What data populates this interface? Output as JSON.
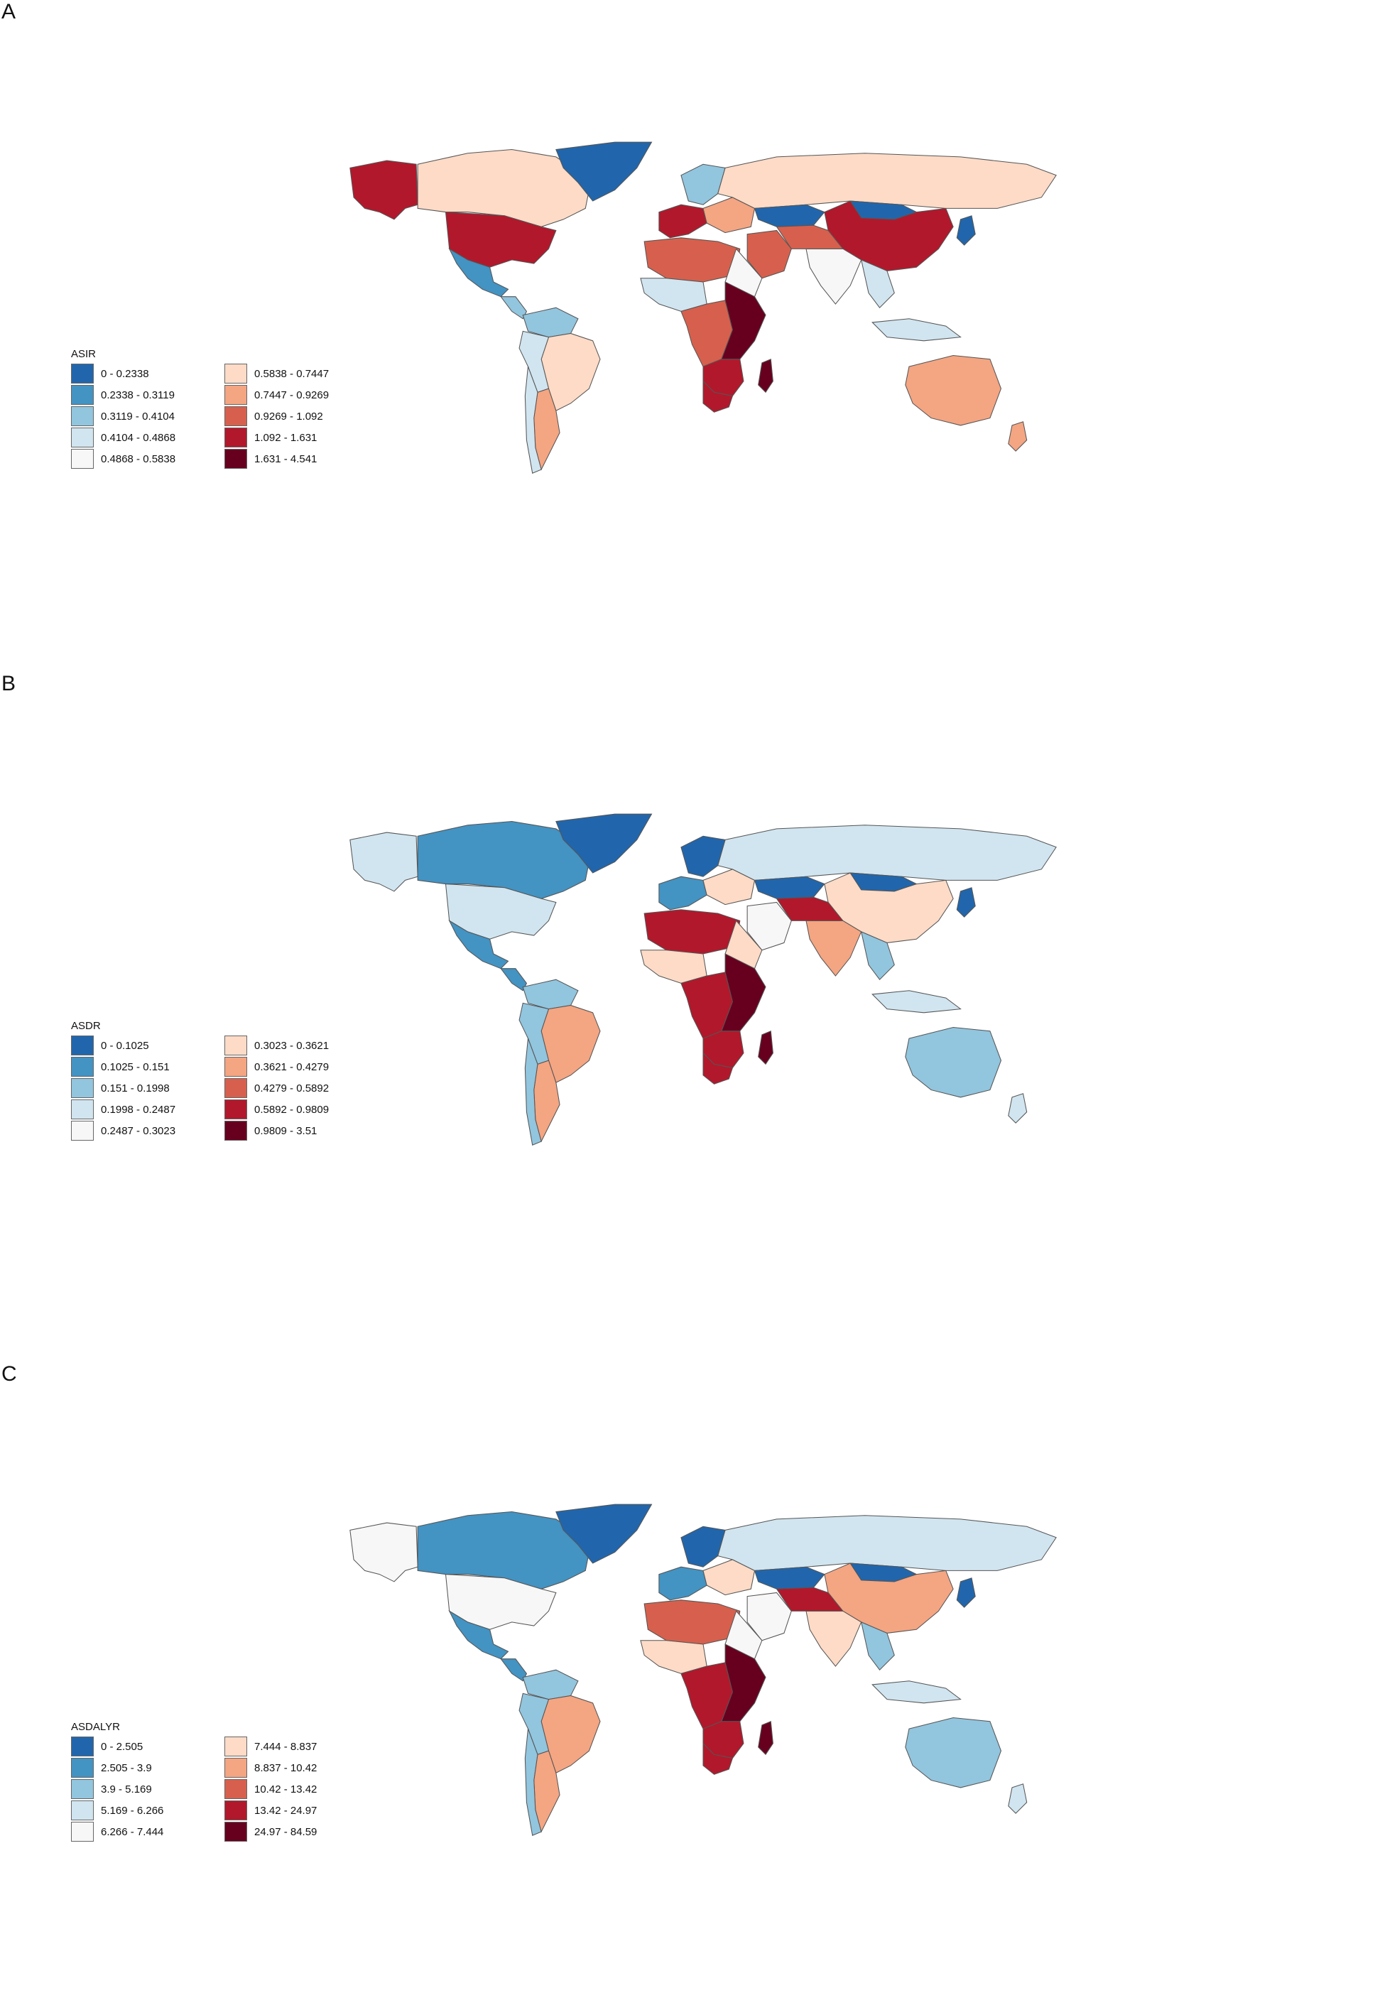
{
  "panels": [
    {
      "letter": "A",
      "legend_title": "ASIR",
      "bins": [
        {
          "label": "0 - 0.2338",
          "color": "#2166ac"
        },
        {
          "label": "0.2338 - 0.3119",
          "color": "#4393c3"
        },
        {
          "label": "0.3119 - 0.4104",
          "color": "#92c5de"
        },
        {
          "label": "0.4104 - 0.4868",
          "color": "#d1e5f0"
        },
        {
          "label": "0.4868 - 0.5838",
          "color": "#f7f7f7"
        },
        {
          "label": "0.5838 - 0.7447",
          "color": "#fddbc7"
        },
        {
          "label": "0.7447 - 0.9269",
          "color": "#f4a582"
        },
        {
          "label": "0.9269 - 1.092",
          "color": "#d6604d"
        },
        {
          "label": "1.092 - 1.631",
          "color": "#b2182b"
        },
        {
          "label": "1.631 - 4.541",
          "color": "#67001f"
        }
      ],
      "regions": {
        "greenland": 0,
        "alaska": 8,
        "canada": 5,
        "usa": 8,
        "mexico": 1,
        "central_america": 2,
        "south_america_north": 2,
        "brazil": 5,
        "andes": 3,
        "argentina": 6,
        "chile": 3,
        "europe_west": 8,
        "scandinavia": 2,
        "europe_east": 6,
        "russia": 5,
        "kazakhstan": 0,
        "mongolia": 0,
        "china": 8,
        "india": 4,
        "middle_east": 7,
        "iran": 7,
        "southeast_asia": 3,
        "japan": 0,
        "indonesia": 3,
        "australia": 6,
        "new_zealand": 6,
        "north_africa": 7,
        "sahara_east": 4,
        "west_africa": 3,
        "central_africa": 7,
        "east_africa": 9,
        "southern_africa": 8,
        "south_africa": 8,
        "madagascar": 9
      }
    },
    {
      "letter": "B",
      "legend_title": "ASDR",
      "bins": [
        {
          "label": "0 - 0.1025",
          "color": "#2166ac"
        },
        {
          "label": "0.1025 - 0.151",
          "color": "#4393c3"
        },
        {
          "label": "0.151 - 0.1998",
          "color": "#92c5de"
        },
        {
          "label": "0.1998 - 0.2487",
          "color": "#d1e5f0"
        },
        {
          "label": "0.2487 - 0.3023",
          "color": "#f7f7f7"
        },
        {
          "label": "0.3023 - 0.3621",
          "color": "#fddbc7"
        },
        {
          "label": "0.3621 - 0.4279",
          "color": "#f4a582"
        },
        {
          "label": "0.4279 - 0.5892",
          "color": "#d6604d"
        },
        {
          "label": "0.5892 - 0.9809",
          "color": "#b2182b"
        },
        {
          "label": "0.9809 - 3.51",
          "color": "#67001f"
        }
      ],
      "regions": {
        "greenland": 0,
        "alaska": 3,
        "canada": 1,
        "usa": 3,
        "mexico": 1,
        "central_america": 1,
        "south_america_north": 2,
        "brazil": 6,
        "andes": 2,
        "argentina": 6,
        "chile": 2,
        "europe_west": 1,
        "scandinavia": 0,
        "europe_east": 5,
        "russia": 3,
        "kazakhstan": 0,
        "mongolia": 0,
        "china": 5,
        "india": 6,
        "middle_east": 4,
        "iran": 8,
        "southeast_asia": 2,
        "japan": 0,
        "indonesia": 3,
        "australia": 2,
        "new_zealand": 3,
        "north_africa": 8,
        "sahara_east": 5,
        "west_africa": 5,
        "central_africa": 8,
        "east_africa": 9,
        "southern_africa": 8,
        "south_africa": 8,
        "madagascar": 9
      }
    },
    {
      "letter": "C",
      "legend_title": "ASDALYR",
      "bins": [
        {
          "label": "0 - 2.505",
          "color": "#2166ac"
        },
        {
          "label": "2.505 - 3.9",
          "color": "#4393c3"
        },
        {
          "label": "3.9 - 5.169",
          "color": "#92c5de"
        },
        {
          "label": "5.169 - 6.266",
          "color": "#d1e5f0"
        },
        {
          "label": "6.266 - 7.444",
          "color": "#f7f7f7"
        },
        {
          "label": "7.444 - 8.837",
          "color": "#fddbc7"
        },
        {
          "label": "8.837 - 10.42",
          "color": "#f4a582"
        },
        {
          "label": "10.42 - 13.42",
          "color": "#d6604d"
        },
        {
          "label": "13.42 - 24.97",
          "color": "#b2182b"
        },
        {
          "label": "24.97 - 84.59",
          "color": "#67001f"
        }
      ],
      "regions": {
        "greenland": 0,
        "alaska": 4,
        "canada": 1,
        "usa": 4,
        "mexico": 1,
        "central_america": 1,
        "south_america_north": 2,
        "brazil": 6,
        "andes": 2,
        "argentina": 6,
        "chile": 2,
        "europe_west": 1,
        "scandinavia": 0,
        "europe_east": 5,
        "russia": 3,
        "kazakhstan": 0,
        "mongolia": 0,
        "china": 6,
        "india": 5,
        "middle_east": 4,
        "iran": 8,
        "southeast_asia": 2,
        "japan": 0,
        "indonesia": 3,
        "australia": 2,
        "new_zealand": 3,
        "north_africa": 7,
        "sahara_east": 4,
        "west_africa": 5,
        "central_africa": 8,
        "east_africa": 9,
        "southern_africa": 8,
        "south_africa": 8,
        "madagascar": 9
      }
    }
  ]
}
